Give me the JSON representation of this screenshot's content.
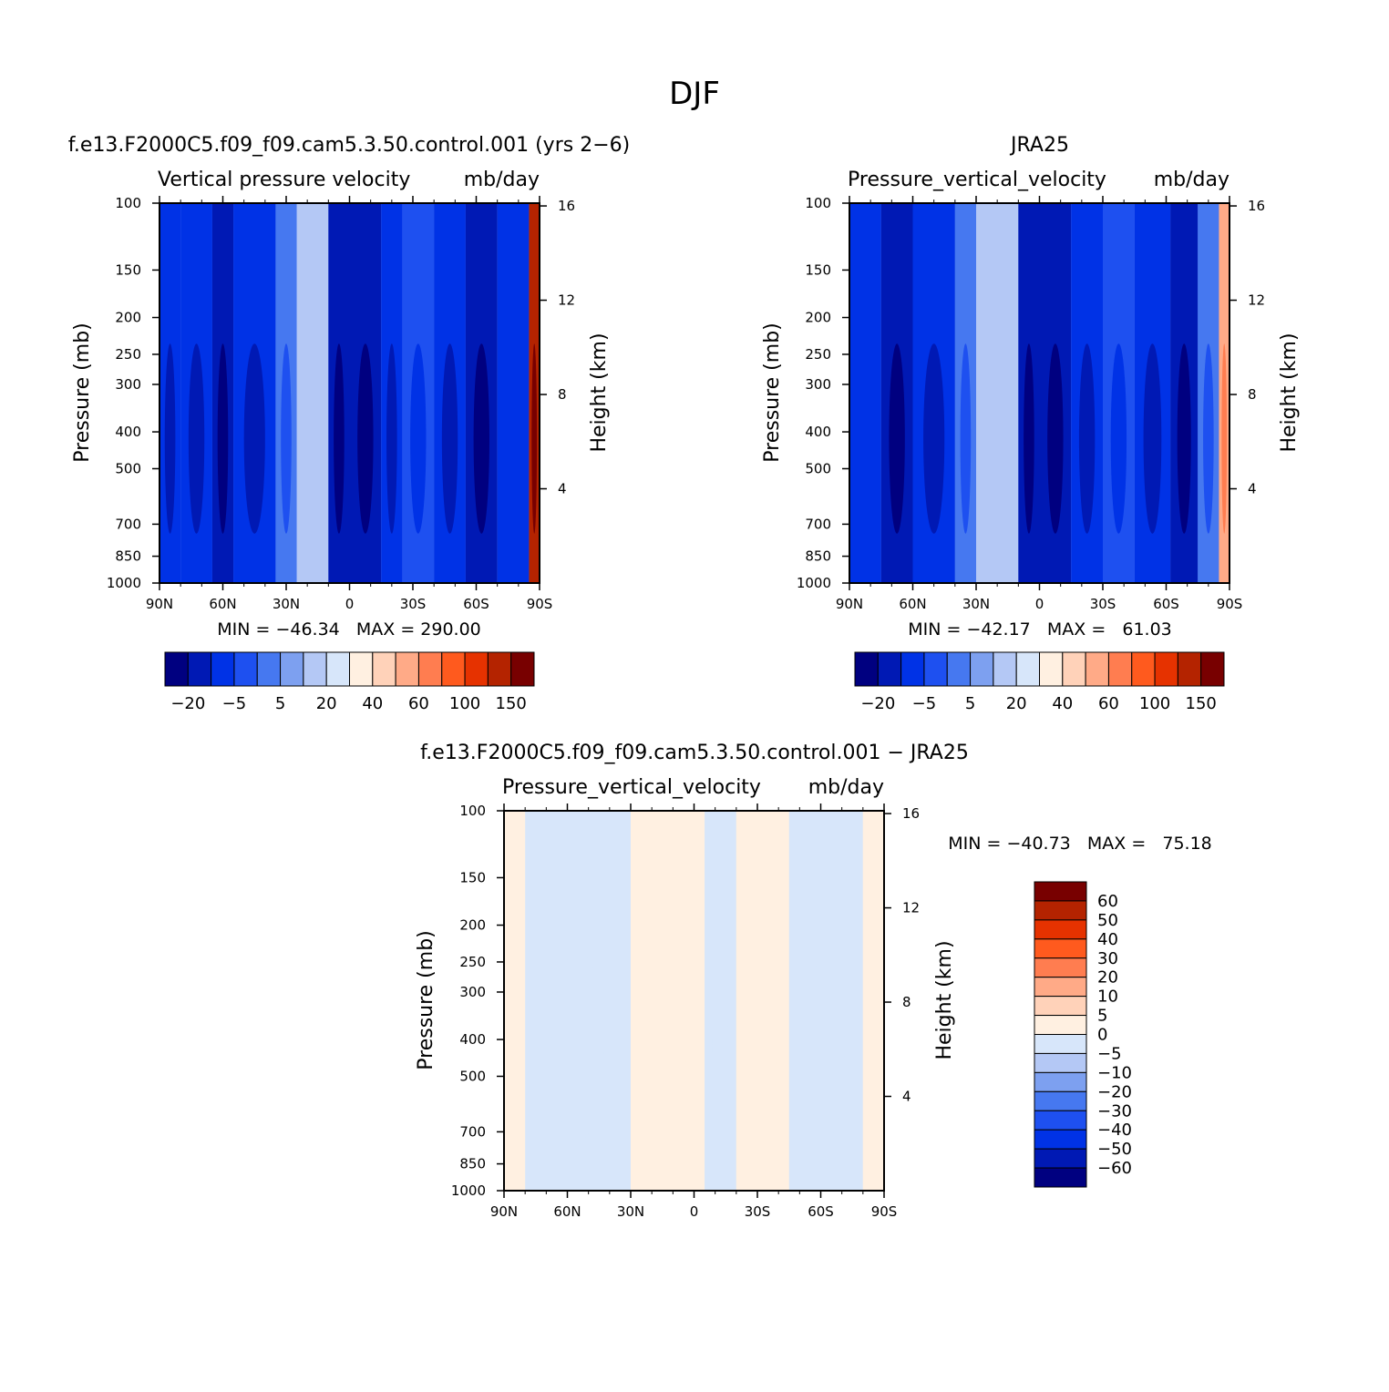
{
  "figure": {
    "title": "DJF"
  },
  "chart_data": [
    {
      "type": "contour",
      "id": "model",
      "title": "f.e13.F2000C5.f09_f09.cam5.3.50.control.001 (yrs 2−6)",
      "variable": "Vertical pressure velocity",
      "units": "mb/day",
      "ylabel": "Pressure (mb)",
      "y2label": "Height (km)",
      "x_ticks": [
        "90N",
        "60N",
        "30N",
        "0",
        "30S",
        "60S",
        "90S"
      ],
      "y_ticks": [
        "100",
        "150",
        "200",
        "250",
        "300",
        "400",
        "500",
        "700",
        "850",
        "1000"
      ],
      "y2_ticks": [
        "16",
        "12",
        "8",
        "4"
      ],
      "stats": "MIN = −46.34   MAX = 290.00",
      "min": -46.34,
      "max": 290.0,
      "colorbar_levels": [
        -30,
        -20,
        -10,
        -5,
        0,
        5,
        10,
        20,
        30,
        40,
        50,
        60,
        80,
        100,
        120,
        150
      ],
      "colorbar_labels": [
        "−20",
        "−5",
        "5",
        "20",
        "40",
        "60",
        "100",
        "150"
      ],
      "bands": [
        {
          "from": "90N",
          "to": "80N",
          "value": -20
        },
        {
          "from": "80N",
          "to": "65N",
          "value": -18
        },
        {
          "from": "65N",
          "to": "55N",
          "value": -25
        },
        {
          "from": "55N",
          "to": "35N",
          "value": -15
        },
        {
          "from": "35N",
          "to": "25N",
          "value": -5
        },
        {
          "from": "25N",
          "to": "10N",
          "value": 5
        },
        {
          "from": "10N",
          "to": "0",
          "value": -30
        },
        {
          "from": "0",
          "to": "15S",
          "value": -28
        },
        {
          "from": "15S",
          "to": "25S",
          "value": -20
        },
        {
          "from": "25S",
          "to": "40S",
          "value": -8
        },
        {
          "from": "40S",
          "to": "55S",
          "value": -20
        },
        {
          "from": "55S",
          "to": "70S",
          "value": -28
        },
        {
          "from": "70S",
          "to": "85S",
          "value": -12
        },
        {
          "from": "85S",
          "to": "90S",
          "value": 100
        }
      ]
    },
    {
      "type": "contour",
      "id": "obs",
      "title": "JRA25",
      "variable": "Pressure_vertical_velocity",
      "units": "mb/day",
      "ylabel": "Pressure (mb)",
      "y2label": "Height (km)",
      "x_ticks": [
        "90N",
        "60N",
        "30N",
        "0",
        "30S",
        "60S",
        "90S"
      ],
      "y_ticks": [
        "100",
        "150",
        "200",
        "250",
        "300",
        "400",
        "500",
        "700",
        "850",
        "1000"
      ],
      "y2_ticks": [
        "16",
        "12",
        "8",
        "4"
      ],
      "stats": "MIN = −42.17   MAX =   61.03",
      "min": -42.17,
      "max": 61.03,
      "colorbar_levels": [
        -30,
        -20,
        -10,
        -5,
        0,
        5,
        10,
        20,
        30,
        40,
        50,
        60,
        80,
        100,
        120,
        150
      ],
      "colorbar_labels": [
        "−20",
        "−5",
        "5",
        "20",
        "40",
        "60",
        "100",
        "150"
      ],
      "bands": [
        {
          "from": "90N",
          "to": "75N",
          "value": -12
        },
        {
          "from": "75N",
          "to": "60N",
          "value": -25
        },
        {
          "from": "60N",
          "to": "40N",
          "value": -15
        },
        {
          "from": "40N",
          "to": "30N",
          "value": -5
        },
        {
          "from": "30N",
          "to": "10N",
          "value": 5
        },
        {
          "from": "10N",
          "to": "0",
          "value": -30
        },
        {
          "from": "0",
          "to": "15S",
          "value": -30
        },
        {
          "from": "15S",
          "to": "30S",
          "value": -18
        },
        {
          "from": "30S",
          "to": "45S",
          "value": -8
        },
        {
          "from": "45S",
          "to": "62S",
          "value": -15
        },
        {
          "from": "62S",
          "to": "75S",
          "value": -22
        },
        {
          "from": "75S",
          "to": "85S",
          "value": -5
        },
        {
          "from": "85S",
          "to": "90S",
          "value": 40
        }
      ]
    },
    {
      "type": "contour",
      "id": "diff",
      "title": "f.e13.F2000C5.f09_f09.cam5.3.50.control.001 − JRA25",
      "variable": "Pressure_vertical_velocity",
      "units": "mb/day",
      "ylabel": "Pressure (mb)",
      "y2label": "Height (km)",
      "x_ticks": [
        "90N",
        "60N",
        "30N",
        "0",
        "30S",
        "60S",
        "90S"
      ],
      "y_ticks": [
        "100",
        "150",
        "200",
        "250",
        "300",
        "400",
        "500",
        "700",
        "850",
        "1000"
      ],
      "y2_ticks": [
        "16",
        "12",
        "8",
        "4"
      ],
      "stats": "MIN = −40.73   MAX =   75.18",
      "min": -40.73,
      "max": 75.18,
      "colorbar_levels": [
        -60,
        -50,
        -40,
        -30,
        -20,
        -10,
        -5,
        0,
        5,
        10,
        20,
        30,
        40,
        50,
        60
      ],
      "colorbar_labels": [
        "60",
        "50",
        "40",
        "30",
        "20",
        "10",
        "5",
        "0",
        "−5",
        "−10",
        "−20",
        "−30",
        "−40",
        "−50",
        "−60"
      ],
      "bands": [
        {
          "from": "90N",
          "to": "80N",
          "value": 2
        },
        {
          "from": "80N",
          "to": "30N",
          "value": -2
        },
        {
          "from": "30N",
          "to": "5S",
          "value": 3
        },
        {
          "from": "5S",
          "to": "20S",
          "value": -2
        },
        {
          "from": "20S",
          "to": "45S",
          "value": 3
        },
        {
          "from": "45S",
          "to": "80S",
          "value": -2
        },
        {
          "from": "80S",
          "to": "90S",
          "value": 2
        }
      ]
    }
  ],
  "colors": {
    "standard_palette": [
      "#000080",
      "#0019b4",
      "#0032e6",
      "#1e50f0",
      "#4678f0",
      "#7da0f0",
      "#b4c8f5",
      "#d7e6fa",
      "#fff0e1",
      "#ffd2b9",
      "#ffaa87",
      "#ff7d50",
      "#ff5a1e",
      "#e63200",
      "#b42300",
      "#780000"
    ],
    "diff_palette": [
      "#000080",
      "#0019b4",
      "#0032e6",
      "#1e50f0",
      "#4678f0",
      "#7da0f0",
      "#b4c8f5",
      "#d7e6fa",
      "#fff0e1",
      "#ffd2b9",
      "#ffaa87",
      "#ff7d50",
      "#ff5a1e",
      "#e63200",
      "#b42300",
      "#780000"
    ]
  }
}
